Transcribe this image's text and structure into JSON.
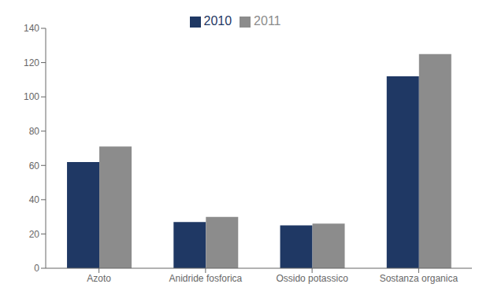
{
  "chart_data": {
    "type": "bar",
    "categories": [
      "Azoto",
      "Anidride fosforica",
      "Ossido potassico",
      "Sostanza organica"
    ],
    "series": [
      {
        "name": "2010",
        "color": "#1F3864",
        "values": [
          62,
          27,
          25,
          112
        ]
      },
      {
        "name": "2011",
        "color": "#8C8C8C",
        "values": [
          71,
          30,
          26,
          125
        ]
      }
    ],
    "ylim": [
      0,
      140
    ],
    "yticks": [
      0,
      20,
      40,
      60,
      80,
      100,
      120,
      140
    ],
    "grid": false,
    "legend": "top"
  }
}
